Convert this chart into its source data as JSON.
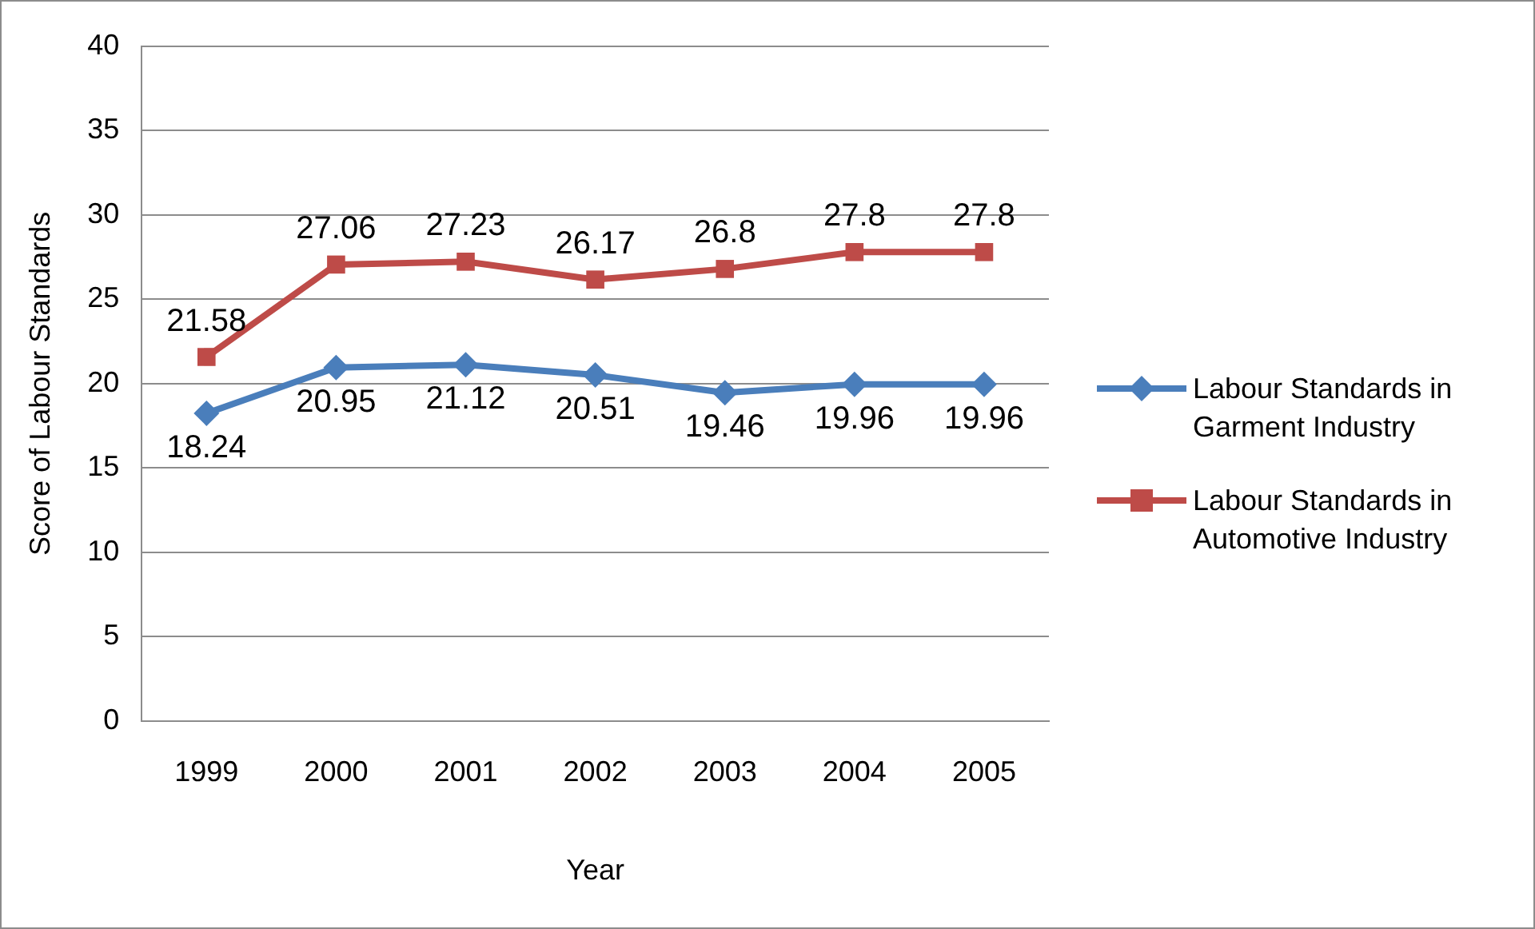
{
  "chart_data": {
    "type": "line",
    "xlabel": "Year",
    "ylabel": "Score of Labour Standards",
    "categories": [
      "1999",
      "2000",
      "2001",
      "2002",
      "2003",
      "2004",
      "2005"
    ],
    "series": [
      {
        "name": "Labour Standards in Garment Industry",
        "color": "#4a7ebb",
        "marker": "diamond",
        "values": [
          18.24,
          20.95,
          21.12,
          20.51,
          19.46,
          19.96,
          19.96
        ]
      },
      {
        "name": "Labour Standards in Automotive Industry",
        "color": "#be4b48",
        "marker": "square",
        "values": [
          21.58,
          27.06,
          27.23,
          26.17,
          26.8,
          27.8,
          27.8
        ]
      }
    ],
    "ylim": [
      0,
      40
    ],
    "yticks": [
      0,
      5,
      10,
      15,
      20,
      25,
      30,
      35,
      40
    ],
    "grid": "y",
    "legend": "right",
    "data_labels": true,
    "line_style": "solid"
  }
}
